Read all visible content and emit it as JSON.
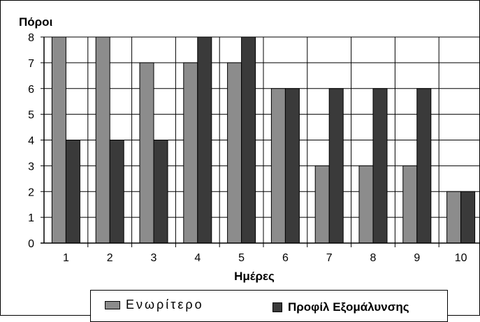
{
  "chart_data": {
    "type": "bar",
    "ylabel": "Πόροι",
    "xlabel": "Ημέρες",
    "categories": [
      "1",
      "2",
      "3",
      "4",
      "5",
      "6",
      "7",
      "8",
      "9",
      "10"
    ],
    "ylim": [
      0,
      8
    ],
    "yticks": [
      0,
      1,
      2,
      3,
      4,
      5,
      6,
      7,
      8
    ],
    "grid": true,
    "legend_position": "bottom",
    "series": [
      {
        "name": "Ενωρίτερο",
        "color": "#8c8c8c",
        "values": [
          8,
          8,
          7,
          7,
          7,
          6,
          3,
          3,
          3,
          2
        ]
      },
      {
        "name": "Προφίλ Εξομάλυνσης",
        "color": "#3a3a3a",
        "values": [
          4,
          4,
          4,
          8,
          8,
          6,
          6,
          6,
          6,
          2
        ]
      }
    ]
  }
}
